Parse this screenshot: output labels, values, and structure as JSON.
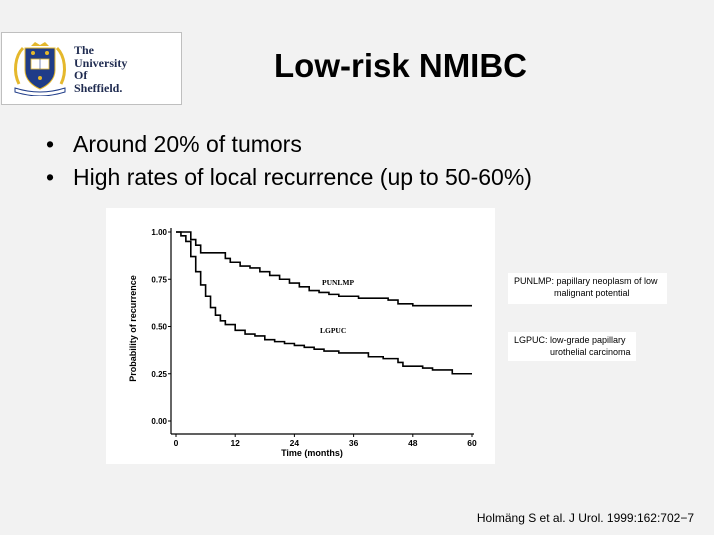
{
  "logo": {
    "lines": [
      "The",
      "University",
      "Of",
      "Sheffield."
    ],
    "crest_text": "DISCE DOCEBO",
    "book_text": "DISCE DOCEBO"
  },
  "slide": {
    "title": "Low-risk NMIBC",
    "bullets": [
      "Around 20% of tumors",
      "High rates of local recurrence (up to 50-60%)"
    ],
    "bullet_char": "•"
  },
  "notes": {
    "punlmp": {
      "line1": "PUNLMP:  papillary neoplasm of low",
      "line2": "malignant potential"
    },
    "lgpuc": {
      "line1": "LGPUC:  low-grade papillary",
      "line2": "urothelial carcinoma"
    }
  },
  "citation": "Holmäng S et al. J Urol. 1999:162:702−7",
  "colors": {
    "background": "#f2f2f2",
    "crest_blue": "#1f3c88",
    "crest_gold": "#e5b82c",
    "text": "#000000"
  },
  "chart_data": {
    "type": "line",
    "xlabel": "Time (months)",
    "ylabel": "Probability of recurrence",
    "xlim": [
      0,
      60
    ],
    "ylim": [
      0,
      1
    ],
    "xticks": [
      0,
      12,
      24,
      36,
      48,
      60
    ],
    "xtick_labels": [
      "0",
      "12",
      "24",
      "36",
      "48",
      "60"
    ],
    "yticks": [
      0,
      0.25,
      0.5,
      0.75,
      1
    ],
    "ytick_labels": [
      "0.00",
      "0.25",
      "0.50",
      "0.75",
      "1.00"
    ],
    "step": true,
    "series": [
      {
        "name": "PUNLMP",
        "points": [
          [
            0,
            1.0
          ],
          [
            2,
            1.0
          ],
          [
            3,
            0.96
          ],
          [
            4,
            0.93
          ],
          [
            5,
            0.89
          ],
          [
            6,
            0.89
          ],
          [
            9,
            0.89
          ],
          [
            10,
            0.86
          ],
          [
            11,
            0.84
          ],
          [
            13,
            0.82
          ],
          [
            15,
            0.81
          ],
          [
            17,
            0.79
          ],
          [
            19,
            0.77
          ],
          [
            21,
            0.75
          ],
          [
            23,
            0.73
          ],
          [
            25,
            0.71
          ],
          [
            27,
            0.69
          ],
          [
            29,
            0.68
          ],
          [
            31,
            0.67
          ],
          [
            33,
            0.66
          ],
          [
            35,
            0.66
          ],
          [
            37,
            0.65
          ],
          [
            40,
            0.65
          ],
          [
            43,
            0.64
          ],
          [
            45,
            0.62
          ],
          [
            47,
            0.62
          ],
          [
            48,
            0.61
          ],
          [
            60,
            0.61
          ]
        ]
      },
      {
        "name": "LGPUC",
        "points": [
          [
            0,
            1.0
          ],
          [
            1,
            0.98
          ],
          [
            2,
            0.95
          ],
          [
            3,
            0.87
          ],
          [
            4,
            0.79
          ],
          [
            5,
            0.72
          ],
          [
            6,
            0.66
          ],
          [
            7,
            0.6
          ],
          [
            8,
            0.56
          ],
          [
            9,
            0.53
          ],
          [
            10,
            0.51
          ],
          [
            12,
            0.48
          ],
          [
            14,
            0.46
          ],
          [
            16,
            0.45
          ],
          [
            18,
            0.43
          ],
          [
            20,
            0.42
          ],
          [
            22,
            0.41
          ],
          [
            24,
            0.4
          ],
          [
            26,
            0.39
          ],
          [
            28,
            0.38
          ],
          [
            30,
            0.37
          ],
          [
            33,
            0.36
          ],
          [
            36,
            0.36
          ],
          [
            39,
            0.34
          ],
          [
            42,
            0.33
          ],
          [
            45,
            0.31
          ],
          [
            46,
            0.29
          ],
          [
            48,
            0.29
          ],
          [
            50,
            0.28
          ],
          [
            52,
            0.27
          ],
          [
            55,
            0.27
          ],
          [
            56,
            0.25
          ],
          [
            60,
            0.25
          ]
        ]
      }
    ]
  }
}
